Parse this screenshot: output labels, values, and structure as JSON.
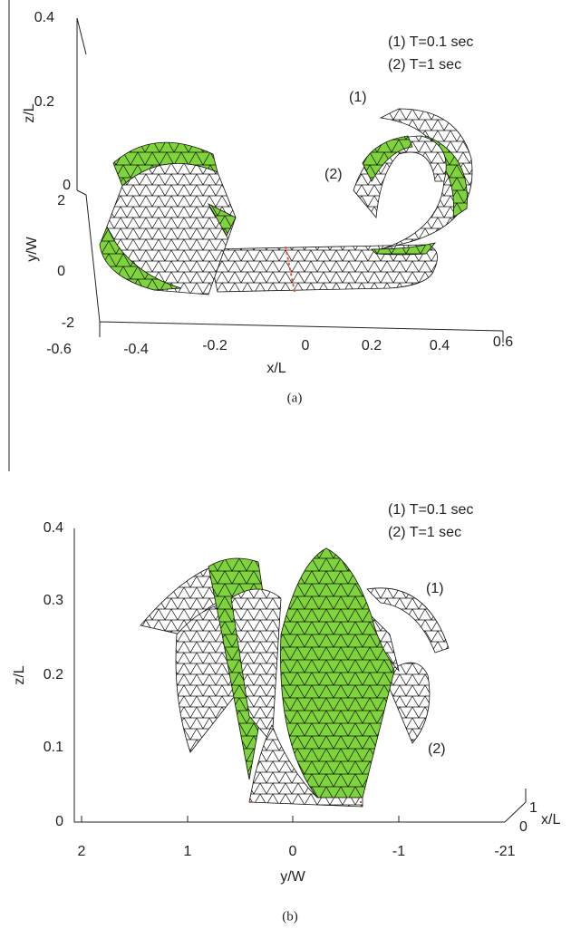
{
  "panel_a": {
    "z_axis_label": "z/L",
    "z_ticks": [
      "0.4",
      "0.2",
      "0"
    ],
    "y_axis_label": "y/W",
    "y_ticks": [
      "2",
      "0",
      "-2"
    ],
    "x_axis_label": "x/L",
    "x_ticks": [
      "-0.6",
      "-0.4",
      "-0.2",
      "0",
      "0.2",
      "0.4",
      "0.6"
    ],
    "legend": [
      "(1) T=0.1 sec",
      "(2) T=1 sec"
    ],
    "curve_labels": [
      "(1)",
      "(2)"
    ],
    "caption": "(a)"
  },
  "panel_b": {
    "z_axis_label": "z/L",
    "z_ticks": [
      "0.4",
      "0.3",
      "0.2",
      "0.1",
      "0"
    ],
    "y_axis_label": "y/W",
    "y_ticks": [
      "2",
      "1",
      "0",
      "-1",
      "-21"
    ],
    "x_axis_label": "x/L",
    "x_ticks": [
      "1",
      "0"
    ],
    "legend": [
      "(1) T=0.1 sec",
      "(2) T=1 sec"
    ],
    "curve_labels": [
      "(1)",
      "(2)"
    ],
    "caption": "(b)"
  }
}
